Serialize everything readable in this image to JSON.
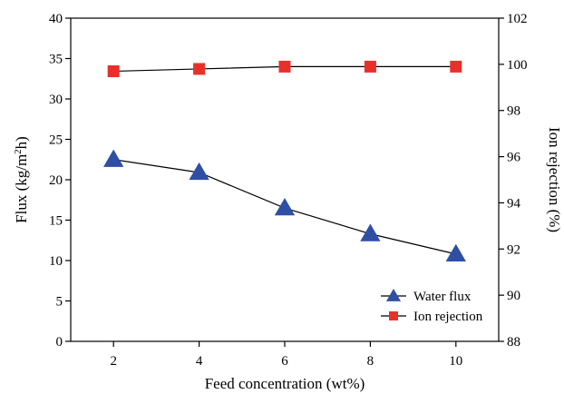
{
  "chart_data": {
    "type": "line",
    "xlabel": "Feed concentration (wt%)",
    "ylabel_left": "Flux (kg/m",
    "ylabel_left_sup": "2",
    "ylabel_left_end": "h)",
    "ylabel_right": "Ion rejection (%)",
    "x": [
      2,
      4,
      6,
      8,
      10
    ],
    "x_ticks": [
      "2",
      "4",
      "6",
      "8",
      "10"
    ],
    "xlim": [
      1,
      11
    ],
    "ylim_left": [
      0,
      40
    ],
    "y_ticks_left": [
      "0",
      "5",
      "10",
      "15",
      "20",
      "25",
      "30",
      "35",
      "40"
    ],
    "ylim_right": [
      88,
      102
    ],
    "y_ticks_right": [
      "88",
      "90",
      "92",
      "94",
      "96",
      "98",
      "100",
      "102"
    ],
    "grid": false,
    "legend_position": "bottom-right",
    "series": [
      {
        "name": "Water flux",
        "axis": "left",
        "marker": "triangle",
        "color": "#2e4fa3",
        "values": [
          22.5,
          20.9,
          16.5,
          13.3,
          10.8
        ]
      },
      {
        "name": "Ion rejection",
        "axis": "right",
        "marker": "square",
        "color": "#e8302a",
        "values": [
          99.7,
          99.8,
          99.9,
          99.9,
          99.9
        ]
      }
    ]
  }
}
